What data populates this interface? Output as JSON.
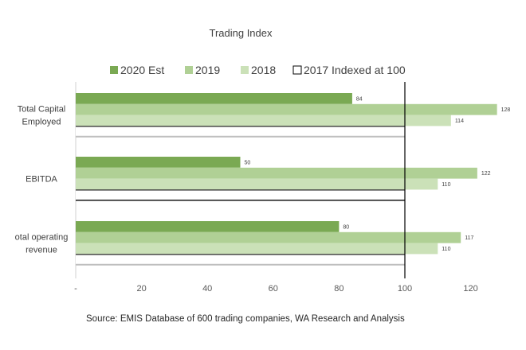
{
  "chart_data": {
    "type": "bar",
    "orientation": "horizontal",
    "title": "Trading Index",
    "categories": [
      [
        "Total Capital",
        "Employed"
      ],
      [
        "EBITDA"
      ],
      [
        "otal operating",
        "revenue"
      ]
    ],
    "series": [
      {
        "name": "2020 Est",
        "values": [
          84,
          50,
          80
        ],
        "color": "#7aa953",
        "show_labels": true
      },
      {
        "name": "2019",
        "values": [
          128,
          122,
          117
        ],
        "color": "#b0d095",
        "show_labels": true
      },
      {
        "name": "2018",
        "values": [
          114,
          110,
          110
        ],
        "color": "#cbe1b8",
        "show_labels": true
      },
      {
        "name": "2017 Indexed at 100",
        "values": [
          100,
          100,
          100
        ],
        "color": "#ffffff",
        "outline": "#000000",
        "show_labels": false
      }
    ],
    "xlim": [
      0,
      128
    ],
    "x_ticks": [
      {
        "value": 0,
        "label": "-"
      },
      {
        "value": 20,
        "label": "20"
      },
      {
        "value": 40,
        "label": "40"
      },
      {
        "value": 60,
        "label": "60"
      },
      {
        "value": 80,
        "label": "80"
      },
      {
        "value": 100,
        "label": "100"
      },
      {
        "value": 120,
        "label": "120"
      }
    ],
    "reference_line": {
      "value": 100,
      "color": "#000000"
    },
    "legend_position": "top",
    "grid": false,
    "xlabel": "",
    "ylabel": "",
    "source": "Source: EMIS Database of 600 trading companies, WA Research and Analysis"
  }
}
